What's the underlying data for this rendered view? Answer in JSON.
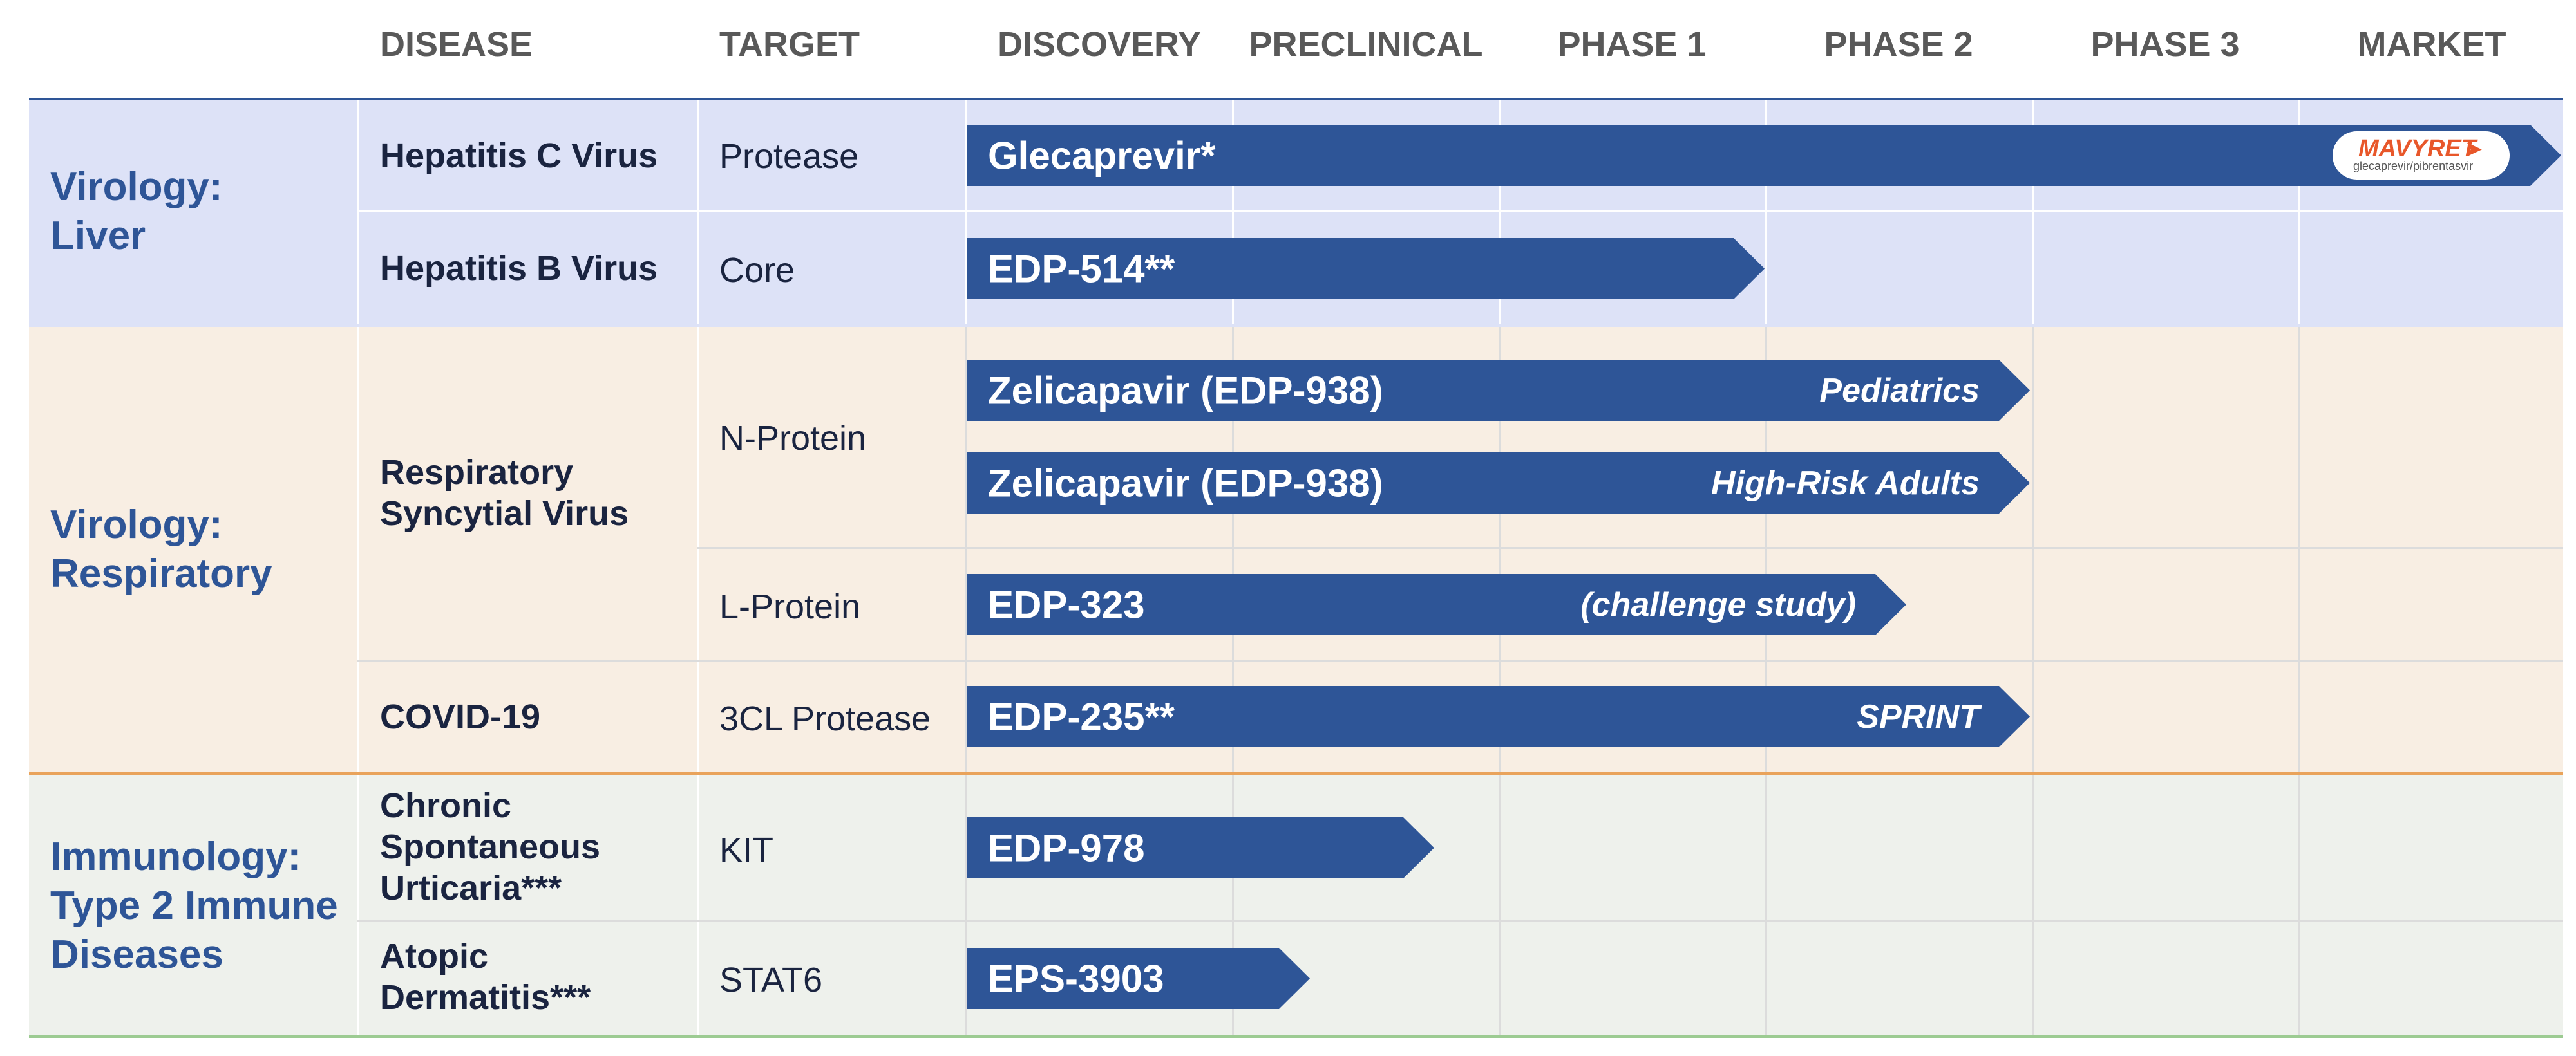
{
  "headers": {
    "disease": "DISEASE",
    "target": "TARGET",
    "stages": [
      "DISCOVERY",
      "PRECLINICAL",
      "PHASE 1",
      "PHASE 2",
      "PHASE 3",
      "MARKET"
    ]
  },
  "colors": {
    "arrow": "#2E5597",
    "group_label": "#2E5597",
    "liver_band": "#DDE2F7",
    "respiratory_band": "#F8EEE3",
    "immunology_band": "#EEF1EC",
    "orange_accent": "#E8572A"
  },
  "groups": {
    "liver": {
      "label": "Virology:\nLiver",
      "rows": [
        {
          "disease": "Hepatitis C Virus",
          "target": "Protease",
          "program": "Glecaprevir*",
          "note": "",
          "stage_reached": "Market",
          "badge": {
            "brand": "MAVYRET",
            "subtitle": "glecaprevir/pibrentasvir"
          }
        },
        {
          "disease": "Hepatitis B Virus",
          "target": "Core",
          "program": "EDP-514**",
          "note": "",
          "stage_reached": "Phase 1"
        }
      ]
    },
    "respiratory": {
      "label": "Virology:\nRespiratory",
      "rows": [
        {
          "disease": "Respiratory\nSyncytial Virus",
          "target": "N-Protein",
          "program": "Zelicapavir (EDP-938)",
          "note": "Pediatrics",
          "stage_reached": "Phase 2"
        },
        {
          "disease": "",
          "target": "",
          "program": "Zelicapavir (EDP-938)",
          "note": "High-Risk Adults",
          "stage_reached": "Phase 2"
        },
        {
          "disease": "",
          "target": "L-Protein",
          "program": "EDP-323",
          "note": "(challenge study)",
          "stage_reached": "Phase 2"
        },
        {
          "disease": "COVID-19",
          "target": "3CL Protease",
          "program": "EDP-235**",
          "note": "SPRINT",
          "stage_reached": "Phase 2"
        }
      ]
    },
    "immunology": {
      "label": "Immunology:\nType 2 Immune\nDiseases",
      "rows": [
        {
          "disease": "Chronic\nSpontaneous\nUrticaria***",
          "target": "KIT",
          "program": "EDP-978",
          "note": "",
          "stage_reached": "Preclinical"
        },
        {
          "disease": "Atopic\nDermatitis***",
          "target": "STAT6",
          "program": "EPS-3903",
          "note": "",
          "stage_reached": "Preclinical"
        }
      ]
    }
  }
}
